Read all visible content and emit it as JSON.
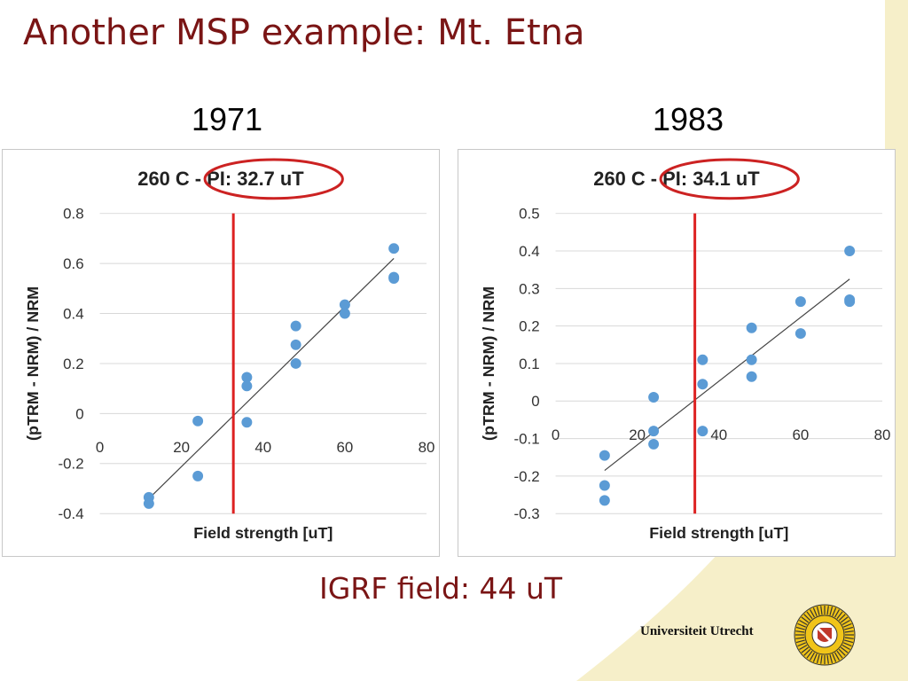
{
  "slide": {
    "title": "Another MSP example: Mt. Etna",
    "footer_note": "IGRF field: 44 uT",
    "university": "Universiteit Utrecht"
  },
  "colors": {
    "title": "#7a1515",
    "points": "#5b9bd5",
    "marker_line": "#dd2222",
    "ellipse": "#cc2222",
    "fit_line": "#444444"
  },
  "chart_data": [
    {
      "type": "scatter",
      "heading": "1971",
      "title_prefix": "260 C - ",
      "title_highlight": "PI: 32.7 uT",
      "xlabel": "Field strength [uT]",
      "ylabel": "(pTRM - NRM) / NRM",
      "xlim": [
        0,
        80
      ],
      "ylim": [
        -0.4,
        0.8
      ],
      "xticks": [
        0,
        20,
        40,
        60,
        80
      ],
      "yticks": [
        -0.4,
        -0.2,
        0,
        0.2,
        0.4,
        0.6,
        0.8
      ],
      "ytick_labels": [
        "-0.4",
        "-0.2",
        "0",
        "0.2",
        "0.4",
        "0.6",
        "0.8"
      ],
      "grid": true,
      "marker_x": 32.7,
      "fit_line": [
        [
          12,
          -0.34
        ],
        [
          72,
          0.62
        ]
      ],
      "points": [
        [
          12,
          -0.335
        ],
        [
          12,
          -0.36
        ],
        [
          24,
          -0.03
        ],
        [
          24,
          -0.25
        ],
        [
          36,
          0.145
        ],
        [
          36,
          0.11
        ],
        [
          36,
          -0.035
        ],
        [
          48,
          0.35
        ],
        [
          48,
          0.275
        ],
        [
          48,
          0.2
        ],
        [
          60,
          0.435
        ],
        [
          60,
          0.4
        ],
        [
          72,
          0.66
        ],
        [
          72,
          0.545
        ],
        [
          72,
          0.54
        ]
      ]
    },
    {
      "type": "scatter",
      "heading": "1983",
      "title_prefix": "260 C - ",
      "title_highlight": "PI: 34.1 uT",
      "xlabel": "Field strength [uT]",
      "ylabel": "(pTRM - NRM) / NRM",
      "xlim": [
        0,
        80
      ],
      "ylim": [
        -0.3,
        0.5
      ],
      "xticks": [
        0,
        20,
        40,
        60,
        80
      ],
      "yticks": [
        -0.3,
        -0.2,
        -0.1,
        0,
        0.1,
        0.2,
        0.3,
        0.4,
        0.5
      ],
      "ytick_labels": [
        "-0.3",
        "-0.2",
        "-0.1",
        "0",
        "0.1",
        "0.2",
        "0.3",
        "0.4",
        "0.5"
      ],
      "grid": true,
      "marker_x": 34.1,
      "fit_line": [
        [
          12,
          -0.185
        ],
        [
          72,
          0.325
        ]
      ],
      "points": [
        [
          12,
          -0.145
        ],
        [
          12,
          -0.225
        ],
        [
          12,
          -0.265
        ],
        [
          24,
          0.01
        ],
        [
          24,
          -0.08
        ],
        [
          24,
          -0.115
        ],
        [
          36,
          0.11
        ],
        [
          36,
          0.045
        ],
        [
          36,
          -0.08
        ],
        [
          48,
          0.195
        ],
        [
          48,
          0.11
        ],
        [
          48,
          0.065
        ],
        [
          60,
          0.265
        ],
        [
          60,
          0.18
        ],
        [
          72,
          0.4
        ],
        [
          72,
          0.27
        ],
        [
          72,
          0.265
        ]
      ]
    }
  ]
}
